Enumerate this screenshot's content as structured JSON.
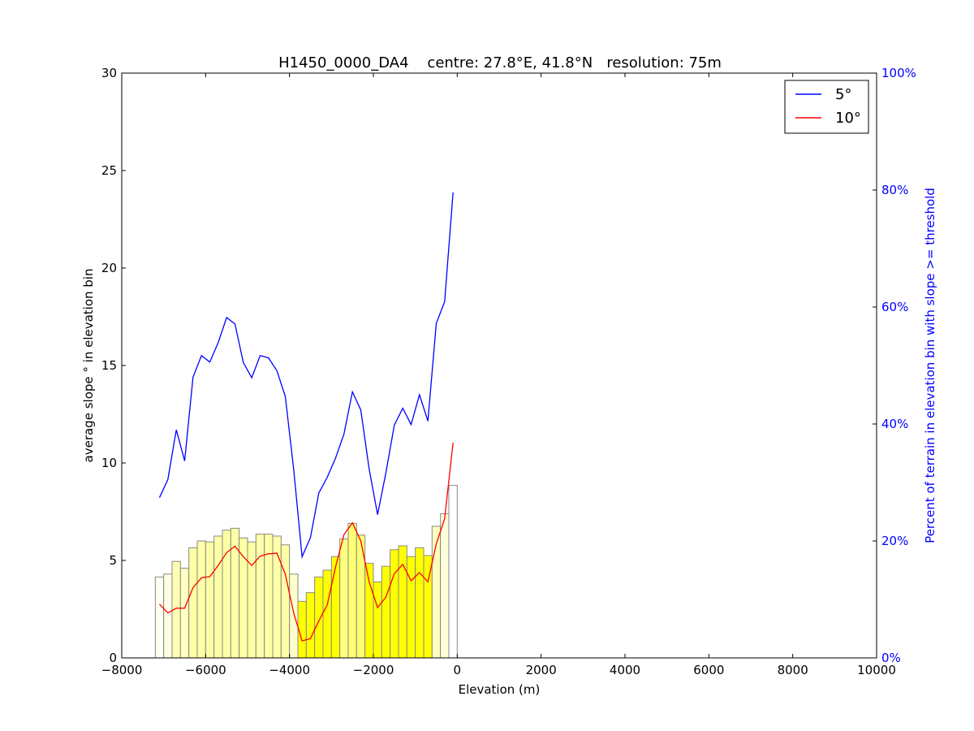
{
  "chart_data": {
    "type": "line",
    "title": "H1450_0000_DA4    centre: 27.8°E, 41.8°N   resolution: 75m",
    "xlabel": "Elevation (m)",
    "ylabel": "average slope ° in elevation bin",
    "ylabel_right": "Percent of terrain in elevation bin with slope >= threshold",
    "xlim": [
      -8000,
      10000
    ],
    "ylim": [
      0,
      30
    ],
    "ylim_right": [
      0,
      100
    ],
    "x_ticks": [
      "−8000",
      "−6000",
      "−4000",
      "−2000",
      "0",
      "2000",
      "4000",
      "6000",
      "8000",
      "10000"
    ],
    "x_tick_values": [
      -8000,
      -6000,
      -4000,
      -2000,
      0,
      2000,
      4000,
      6000,
      8000,
      10000
    ],
    "y_ticks": [
      "0",
      "5",
      "10",
      "15",
      "20",
      "25",
      "30"
    ],
    "y_tick_values": [
      0,
      5,
      10,
      15,
      20,
      25,
      30
    ],
    "y_ticks_right": [
      "0%",
      "20%",
      "40%",
      "60%",
      "80%",
      "100%"
    ],
    "y_tick_values_right": [
      0,
      20,
      40,
      60,
      80,
      100
    ],
    "legend_position": "top-right",
    "grid": false,
    "series": [
      {
        "name": "5°",
        "color": "#0000ff",
        "axis": "right",
        "x": [
          -7100,
          -6900,
          -6700,
          -6500,
          -6300,
          -6100,
          -5900,
          -5700,
          -5500,
          -5300,
          -5100,
          -4900,
          -4700,
          -4500,
          -4300,
          -4100,
          -3900,
          -3700,
          -3500,
          -3300,
          -3100,
          -2900,
          -2700,
          -2500,
          -2300,
          -2100,
          -1900,
          -1700,
          -1500,
          -1300,
          -1100,
          -900,
          -700,
          -500,
          -300,
          -100
        ],
        "values": [
          27.4,
          30.5,
          39.0,
          33.7,
          48.0,
          51.7,
          50.6,
          53.9,
          58.2,
          57.1,
          50.5,
          47.9,
          51.7,
          51.3,
          49.1,
          44.7,
          32.3,
          17.3,
          20.6,
          28.2,
          30.9,
          34.2,
          38.3,
          45.5,
          42.4,
          32.3,
          24.5,
          31.7,
          39.8,
          42.7,
          39.9,
          45.0,
          40.5,
          57.2,
          60.9,
          79.6
        ]
      },
      {
        "name": "10°",
        "color": "#ff0000",
        "axis": "right",
        "x": [
          -7100,
          -6900,
          -6700,
          -6500,
          -6300,
          -6100,
          -5900,
          -5700,
          -5500,
          -5300,
          -5100,
          -4900,
          -4700,
          -4500,
          -4300,
          -4100,
          -3900,
          -3700,
          -3500,
          -3300,
          -3100,
          -2900,
          -2700,
          -2500,
          -2300,
          -2100,
          -1900,
          -1700,
          -1500,
          -1300,
          -1100,
          -900,
          -700,
          -500,
          -300,
          -100
        ],
        "values": [
          9.2,
          7.7,
          8.5,
          8.5,
          12.0,
          13.7,
          13.9,
          15.8,
          18.0,
          19.1,
          17.3,
          15.8,
          17.4,
          17.8,
          17.9,
          14.3,
          7.7,
          2.9,
          3.3,
          6.3,
          9.1,
          15.6,
          21.1,
          23.1,
          20.0,
          13.0,
          8.6,
          10.4,
          14.4,
          16.0,
          13.2,
          14.6,
          13.0,
          19.5,
          23.8,
          36.8
        ]
      }
    ],
    "bars": {
      "axis": "left",
      "bin_width": 200,
      "x": [
        -7100,
        -6900,
        -6700,
        -6500,
        -6300,
        -6100,
        -5900,
        -5700,
        -5500,
        -5300,
        -5100,
        -4900,
        -4700,
        -4500,
        -4300,
        -4100,
        -3900,
        -3700,
        -3500,
        -3300,
        -3100,
        -2900,
        -2700,
        -2500,
        -2300,
        -2100,
        -1900,
        -1700,
        -1500,
        -1300,
        -1100,
        -900,
        -700,
        -500,
        -300,
        -100
      ],
      "values": [
        4.15,
        4.3,
        4.95,
        4.6,
        5.65,
        6.0,
        5.95,
        6.25,
        6.55,
        6.65,
        6.15,
        5.95,
        6.35,
        6.35,
        6.25,
        5.8,
        4.3,
        2.9,
        3.35,
        4.15,
        4.5,
        5.2,
        6.1,
        6.9,
        6.3,
        4.85,
        3.9,
        4.7,
        5.55,
        5.75,
        5.2,
        5.65,
        5.25,
        6.75,
        7.4,
        8.85
      ],
      "fill_intensity": [
        0.05,
        0.1,
        0.3,
        0.25,
        0.35,
        0.35,
        0.35,
        0.35,
        0.35,
        0.35,
        0.35,
        0.35,
        0.35,
        0.35,
        0.35,
        0.35,
        0.2,
        1.0,
        1.0,
        1.0,
        1.0,
        1.0,
        0.5,
        0.55,
        0.55,
        1.0,
        1.0,
        1.0,
        1.0,
        1.0,
        1.0,
        1.0,
        1.0,
        0.25,
        0.15,
        0.0
      ]
    }
  }
}
